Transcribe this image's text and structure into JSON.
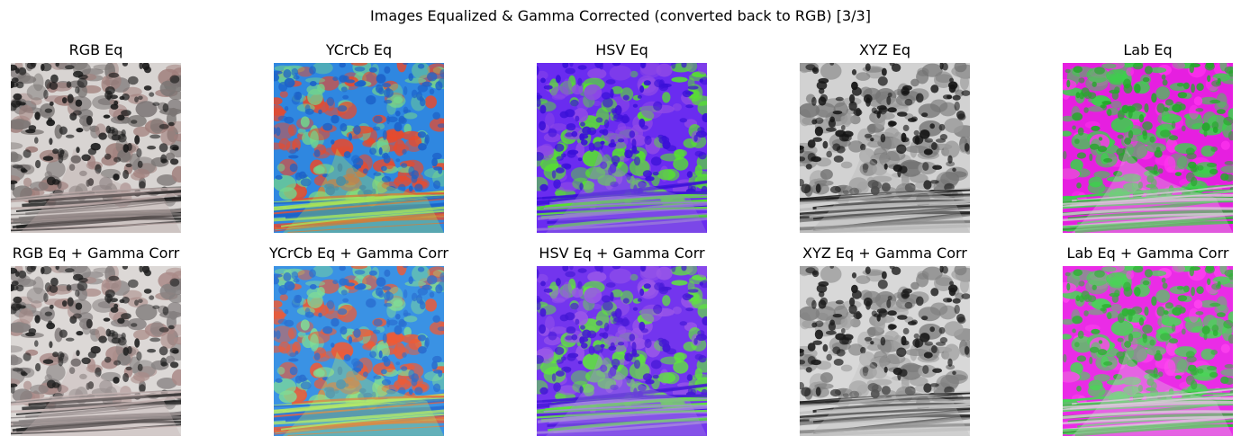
{
  "figure": {
    "title": "Images Equalized & Gamma Corrected (converted back to RGB) [3/3]"
  },
  "rows": [
    {
      "panels": [
        {
          "title": "RGB Eq",
          "palette": {
            "base": "#d8d4d2",
            "dark": "#1a1a1a",
            "mid": "#7a7574",
            "accent": "#a07f7c",
            "stroma": "#b9a7a6"
          }
        },
        {
          "title": "YCrCb Eq",
          "palette": {
            "base": "#2f87e0",
            "dark": "#1d63c9",
            "mid": "#e84a2c",
            "accent": "#73d58c",
            "stroma": "#a7e35a"
          }
        },
        {
          "title": "HSV Eq",
          "palette": {
            "base": "#6a2cf0",
            "dark": "#3a10d8",
            "mid": "#56e62b",
            "accent": "#8f4ae6",
            "stroma": "#9a7ad9"
          }
        },
        {
          "title": "XYZ Eq",
          "palette": {
            "base": "#d2d2d2",
            "dark": "#151515",
            "mid": "#747474",
            "accent": "#9a9a9a",
            "stroma": "#b8b8b8"
          }
        },
        {
          "title": "Lab Eq",
          "palette": {
            "base": "#e61fe0",
            "dark": "#24a82a",
            "mid": "#3ad24a",
            "accent": "#ff33ee",
            "stroma": "#d8c5d8"
          }
        }
      ]
    },
    {
      "panels": [
        {
          "title": "RGB Eq + Gamma Corr",
          "palette": {
            "base": "#dcd8d6",
            "dark": "#222222",
            "mid": "#858080",
            "accent": "#a98a87",
            "stroma": "#c4b3b1"
          }
        },
        {
          "title": "YCrCb Eq + Gamma Corr",
          "palette": {
            "base": "#3a92e4",
            "dark": "#2a6fd0",
            "mid": "#ef5a35",
            "accent": "#7fdc96",
            "stroma": "#b2e86a"
          }
        },
        {
          "title": "HSV Eq + Gamma Corr",
          "palette": {
            "base": "#7335ee",
            "dark": "#4518d6",
            "mid": "#5fe83a",
            "accent": "#9a58e8",
            "stroma": "#a58ade"
          }
        },
        {
          "title": "XYZ Eq + Gamma Corr",
          "palette": {
            "base": "#d8d8d8",
            "dark": "#1c1c1c",
            "mid": "#7e7e7e",
            "accent": "#a2a2a2",
            "stroma": "#c0c0c0"
          }
        },
        {
          "title": "Lab Eq + Gamma Corr",
          "palette": {
            "base": "#ea2ce6",
            "dark": "#2fb235",
            "mid": "#48d656",
            "accent": "#ff45f0",
            "stroma": "#dccbdc"
          }
        }
      ]
    }
  ]
}
